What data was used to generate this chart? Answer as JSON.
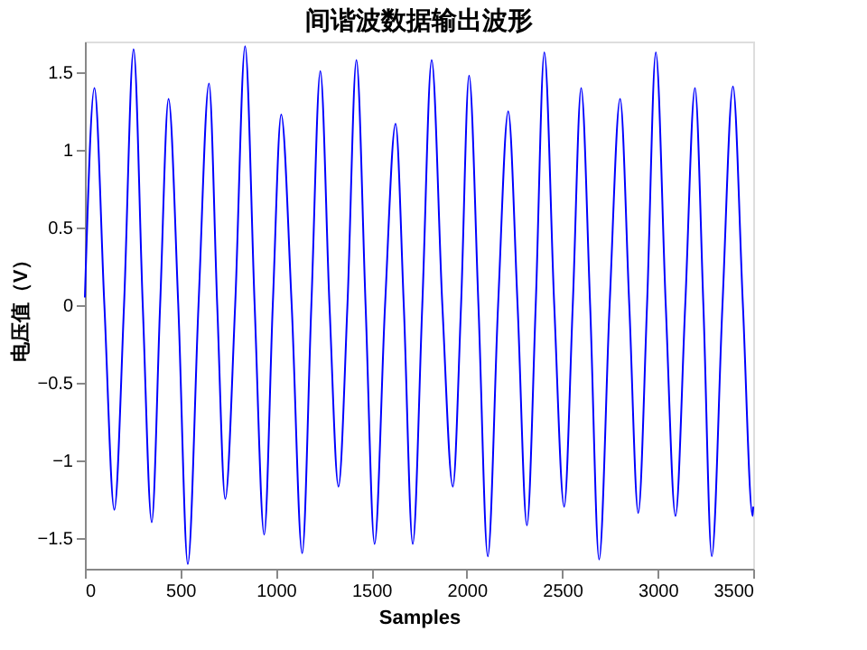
{
  "chart_data": {
    "type": "line",
    "title": "间谐波数据输出波形",
    "xlabel": "Samples",
    "ylabel": "电压值（V）",
    "x": [
      0,
      50,
      102,
      154,
      205,
      255,
      303,
      350,
      394,
      438,
      489,
      539,
      595,
      650,
      693,
      735,
      787,
      839,
      889,
      939,
      984,
      1028,
      1083,
      1138,
      1186,
      1233,
      1281,
      1328,
      1375,
      1422,
      1470,
      1517,
      1572,
      1627,
      1670,
      1717,
      1767,
      1816,
      1872,
      1927,
      1970,
      2012,
      2061,
      2110,
      2164,
      2217,
      2266,
      2315,
      2361,
      2406,
      2458,
      2510,
      2555,
      2599,
      2646,
      2693,
      2748,
      2803,
      2851,
      2898,
      2944,
      2990,
      3042,
      3093,
      3144,
      3195,
      3239,
      3283,
      3339,
      3394,
      3446,
      3497,
      3500
    ],
    "series": [
      {
        "color": "#0000ff",
        "values": [
          0.05,
          1.4,
          0,
          -1.32,
          0,
          1.65,
          0,
          -1.4,
          0,
          1.33,
          0,
          -1.67,
          0,
          1.43,
          0,
          -1.25,
          0,
          1.67,
          0,
          -1.48,
          0,
          1.23,
          0,
          -1.6,
          0,
          1.51,
          0,
          -1.17,
          0,
          1.58,
          0,
          -1.54,
          0,
          1.17,
          0,
          -1.54,
          0,
          1.58,
          0,
          -1.17,
          0,
          1.48,
          0,
          -1.62,
          0,
          1.25,
          0,
          -1.42,
          0,
          1.63,
          0,
          -1.3,
          0,
          1.4,
          0,
          -1.64,
          0,
          1.33,
          0,
          -1.34,
          0,
          1.63,
          0,
          -1.36,
          0,
          1.4,
          0,
          -1.62,
          0,
          1.41,
          0,
          -1.36,
          -1.3
        ]
      }
    ],
    "xlim": [
      0,
      3500
    ],
    "xticks": [
      0,
      500,
      1000,
      1500,
      2000,
      2500,
      3000,
      3500
    ],
    "ylim": [
      -1.7,
      1.7
    ],
    "yticks": [
      -1.5,
      -1,
      -0.5,
      0,
      0.5,
      1,
      1.5
    ],
    "grid": false,
    "legend": false,
    "marker": "none",
    "line_style": "solid"
  }
}
